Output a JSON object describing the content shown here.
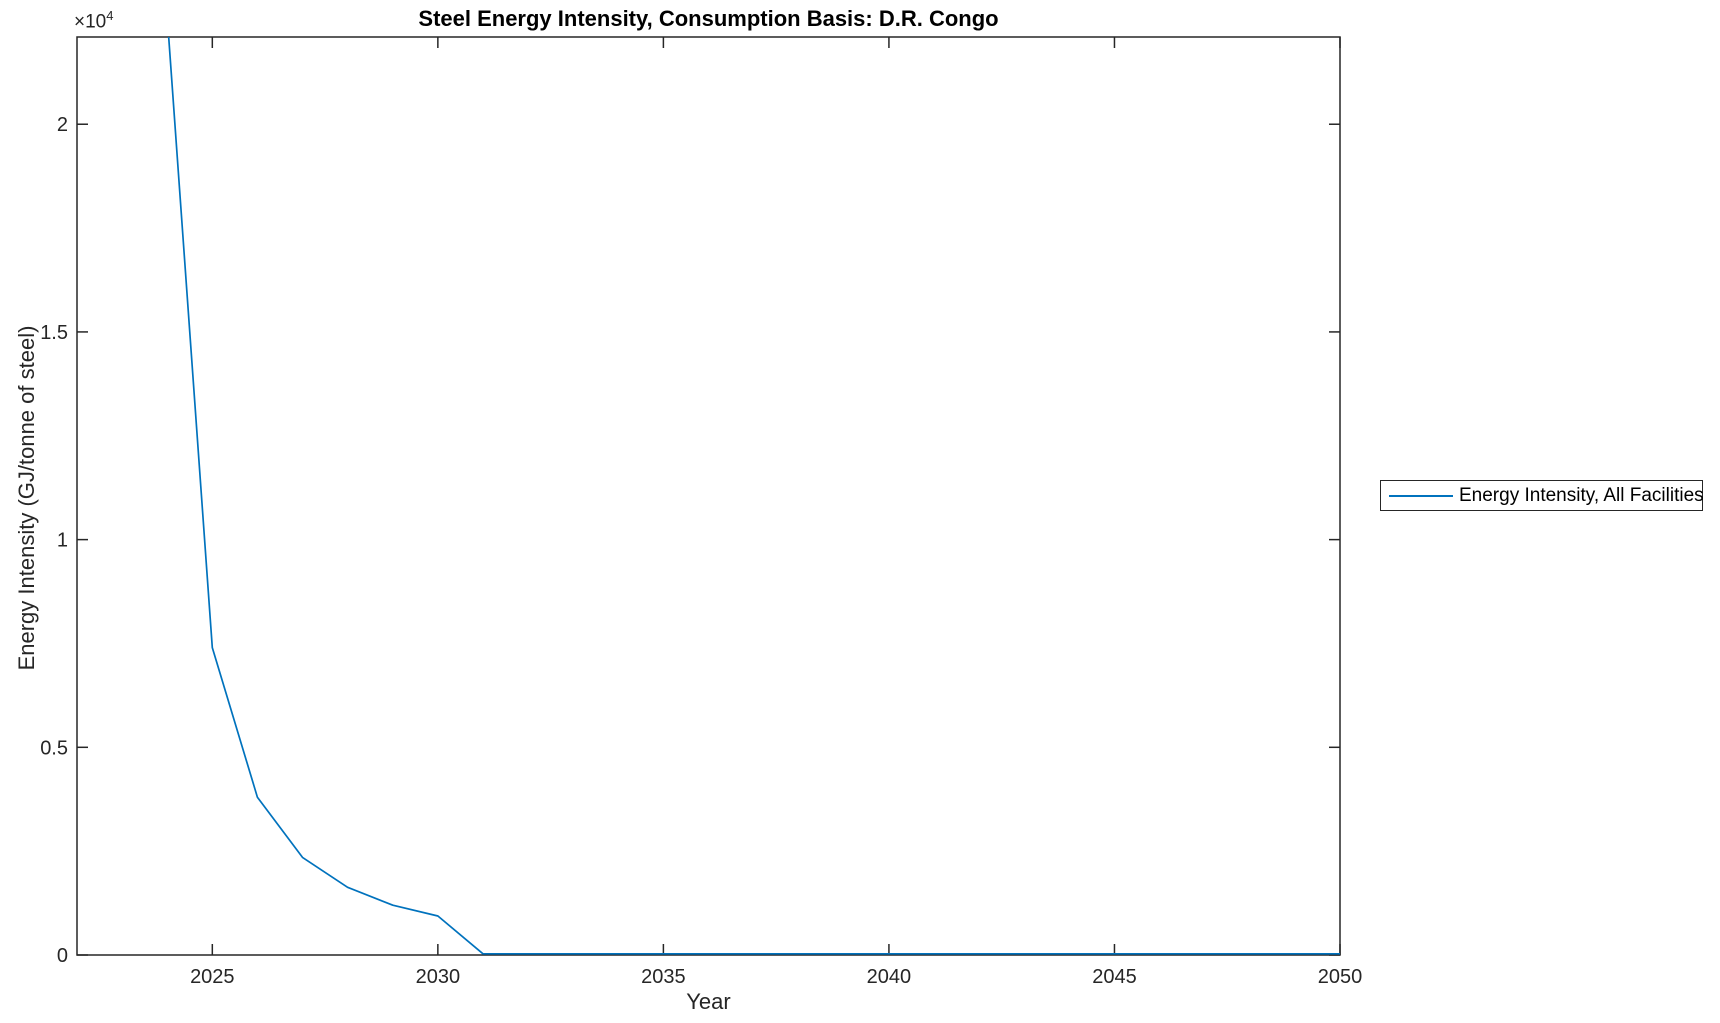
{
  "title": "Steel Energy Intensity, Consumption Basis: D.R. Congo",
  "axes": {
    "xlabel": "Year",
    "ylabel": "Energy Intensity (GJ/tonne of steel)",
    "y_multiplier_base": "×10",
    "y_multiplier_exponent": "4"
  },
  "legend": {
    "entries": [
      {
        "label": "Energy Intensity, All Facilities",
        "color": "#0072BD"
      }
    ],
    "position": "outside-right"
  },
  "colors": {
    "axis": "#262626",
    "background": "#ffffff",
    "series_blue": "#0072BD"
  },
  "chart_data": {
    "type": "line",
    "title": "Steel Energy Intensity, Consumption Basis: D.R. Congo",
    "xlabel": "Year",
    "ylabel": "Energy Intensity (GJ/tonne of steel)",
    "xlim": [
      2022,
      2050
    ],
    "ylim": [
      0,
      22100
    ],
    "x_ticks": [
      2025,
      2030,
      2035,
      2040,
      2045,
      2050
    ],
    "y_ticks": [
      0,
      5000,
      10000,
      15000,
      20000
    ],
    "y_tick_labels": [
      "0",
      "0.5",
      "1",
      "1.5",
      "2"
    ],
    "y_multiplier": "1e4",
    "grid": false,
    "legend_position": "outside-right",
    "series": [
      {
        "name": "Energy Intensity, All Facilities",
        "color": "#0072BD",
        "x": [
          2024,
          2025,
          2026,
          2027,
          2028,
          2029,
          2030,
          2031,
          2032,
          2033,
          2034,
          2035,
          2036,
          2037,
          2038,
          2039,
          2040,
          2041,
          2042,
          2043,
          2044,
          2045,
          2046,
          2047,
          2048,
          2049,
          2050
        ],
        "y": [
          22600,
          7400,
          3800,
          2350,
          1630,
          1200,
          940,
          30,
          30,
          30,
          30,
          30,
          30,
          30,
          30,
          30,
          30,
          30,
          30,
          30,
          30,
          30,
          30,
          30,
          30,
          30,
          30
        ]
      }
    ]
  }
}
